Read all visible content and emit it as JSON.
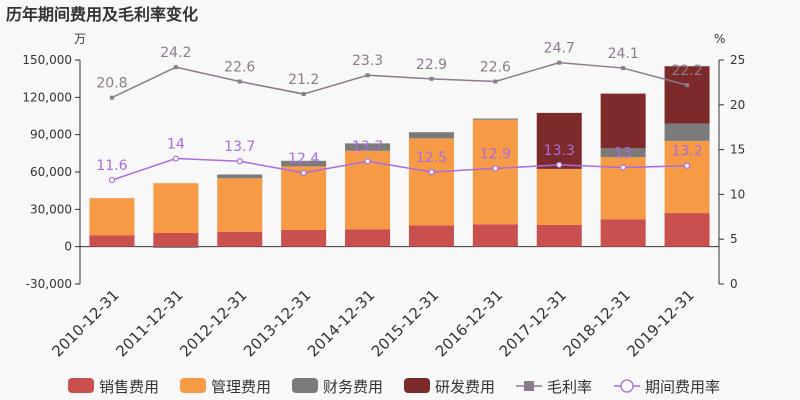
{
  "chart_data": {
    "type": "bar",
    "title": "历年期间费用及毛利率变化",
    "left_unit": "万",
    "right_unit": "%",
    "categories": [
      "2010-12-31",
      "2011-12-31",
      "2012-12-31",
      "2013-12-31",
      "2014-12-31",
      "2015-12-31",
      "2016-12-31",
      "2017-12-31",
      "2018-12-31",
      "2019-12-31"
    ],
    "left_ticks": [
      "150,000",
      "120,000",
      "90,000",
      "60,000",
      "30,000",
      "0",
      "-30,000"
    ],
    "right_ticks": [
      "25",
      "20",
      "15",
      "10",
      "5",
      "0"
    ],
    "ylim_left": [
      -30000,
      150000
    ],
    "ylim_right": [
      0,
      25
    ],
    "series": [
      {
        "name": "销售费用",
        "kind": "bar",
        "color": "#c9504e",
        "values": [
          9000,
          11000,
          12000,
          13500,
          14000,
          17000,
          18000,
          17500,
          22000,
          27000
        ]
      },
      {
        "name": "管理费用",
        "kind": "bar",
        "color": "#f79a45",
        "values": [
          30000,
          40000,
          43000,
          51000,
          63000,
          70000,
          84000,
          45000,
          50000,
          58000
        ]
      },
      {
        "name": "财务费用",
        "kind": "bar",
        "color": "#7b7b7b",
        "values": [
          0,
          -1000,
          3000,
          4500,
          6000,
          5000,
          1000,
          0,
          7000,
          14000
        ]
      },
      {
        "name": "研发费用",
        "kind": "bar",
        "color": "#7d2a2a",
        "values": [
          0,
          0,
          0,
          0,
          0,
          0,
          0,
          45000,
          44000,
          46000
        ]
      },
      {
        "name": "毛利率",
        "kind": "line",
        "axis": "right",
        "color": "#8c7b8c",
        "values": [
          20.8,
          24.2,
          22.6,
          21.2,
          23.3,
          22.9,
          22.6,
          24.7,
          24.1,
          22.2
        ]
      },
      {
        "name": "期间费用率",
        "kind": "line",
        "axis": "right",
        "color": "#a86ce0",
        "values": [
          11.6,
          14,
          13.7,
          12.4,
          13.7,
          12.5,
          12.9,
          13.3,
          13,
          13.2
        ]
      }
    ],
    "legend_position": "bottom",
    "grid": false
  }
}
